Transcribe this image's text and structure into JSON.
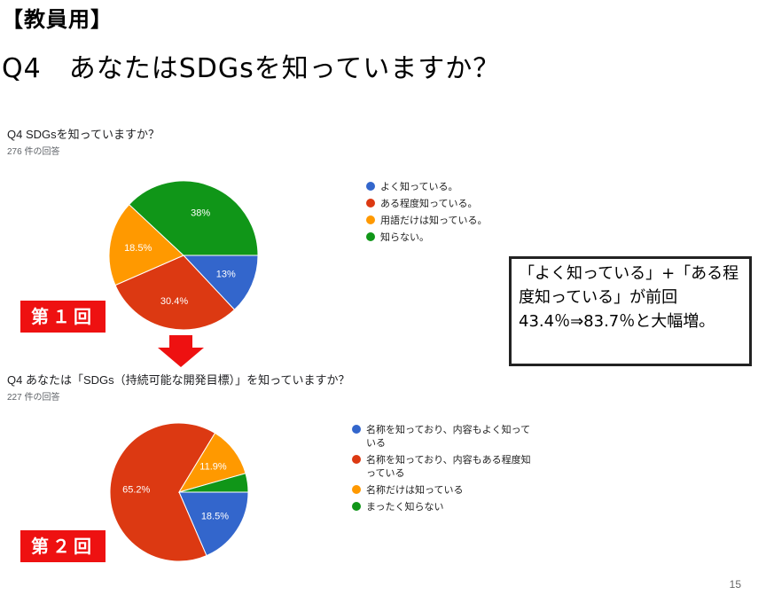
{
  "slide": {
    "tag": "【教員用】",
    "title": "Q4　あなたはSDGsを知っていますか？",
    "round1_label": "第１回",
    "round2_label": "第２回",
    "summary": "「よく知っている」+「ある程度知っている」が前回43.4％⇒83.7％と大幅増。",
    "page_number": "15"
  },
  "charts": {
    "first": {
      "title": "Q4 SDGsを知っていますか？",
      "responses": "276 件の回答"
    },
    "second": {
      "title": "Q4 あなたは「SDGs（持続可能な開発目標）」を知っていますか？",
      "responses": "227 件の回答"
    }
  },
  "chart_data": [
    {
      "type": "pie",
      "title": "Q4 SDGsを知っていますか？",
      "subtitle": "276 件の回答",
      "legend_position": "right",
      "categories": [
        "よく知っている。",
        "ある程度知っている。",
        "用語だけは知っている。",
        "知らない。"
      ],
      "values": [
        13,
        30.4,
        18.5,
        38
      ],
      "labels": [
        "13%",
        "30.4%",
        "18.5%",
        "38%"
      ],
      "colors": [
        "#3366cc",
        "#dc3912",
        "#ff9900",
        "#109618"
      ]
    },
    {
      "type": "pie",
      "title": "Q4 あなたは「SDGs（持続可能な開発目標）」を知っていますか？",
      "subtitle": "227 件の回答",
      "legend_position": "right",
      "categories": [
        "名称を知っており、内容もよく知っている",
        "名称を知っており、内容もある程度知っている",
        "名称だけは知っている",
        "まったく知らない"
      ],
      "values": [
        18.5,
        65.2,
        11.9,
        4.4
      ],
      "labels": [
        "18.5%",
        "65.2%",
        "11.9%",
        ""
      ],
      "colors": [
        "#3366cc",
        "#dc3912",
        "#ff9900",
        "#109618"
      ]
    }
  ]
}
